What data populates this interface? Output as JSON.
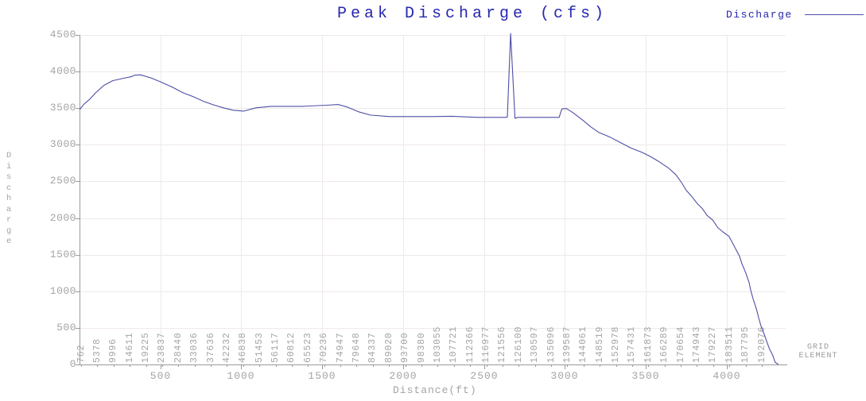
{
  "title": "Peak Discharge (cfs)",
  "legend": {
    "label": "Discharge"
  },
  "y_axis": {
    "label": "Discharge",
    "ticks": [
      "4500",
      "4000",
      "3500",
      "3000",
      "2500",
      "2000",
      "1500",
      "1000",
      "500",
      "0"
    ]
  },
  "x_axis": {
    "label": "Distance(ft)",
    "ticks": [
      "500",
      "1000",
      "1500",
      "2000",
      "2500",
      "3000",
      "3500",
      "4000"
    ]
  },
  "grid_elements": {
    "caption": "GRID ELEMENT",
    "labels": [
      "762",
      "5378",
      "9996",
      "14611",
      "19225",
      "23837",
      "28440",
      "33036",
      "37636",
      "42232",
      "46838",
      "51453",
      "56117",
      "60812",
      "65523",
      "70236",
      "74947",
      "79648",
      "84337",
      "89020",
      "93700",
      "98380",
      "103055",
      "107721",
      "112366",
      "116977",
      "121556",
      "126100",
      "130597",
      "135096",
      "139587",
      "144061",
      "148519",
      "152978",
      "157431",
      "161873",
      "166289",
      "170654",
      "174943",
      "179227",
      "183511",
      "187795",
      "192076"
    ]
  },
  "colors": {
    "background": "#ffffff",
    "title_text": "#2626b0",
    "series_line": "#4d4da6",
    "axis": "#9a9a9a",
    "tick_text": "#a4a4a4",
    "gridline": "#f0e9e9"
  },
  "chart_data": {
    "type": "line",
    "title": "Peak Discharge (cfs)",
    "xlabel": "Distance(ft)",
    "ylabel": "Discharge",
    "xlim": [
      0,
      4400
    ],
    "ylim": [
      0,
      4500
    ],
    "x_tick_interval": 500,
    "y_tick_interval": 500,
    "grid": true,
    "legend_position": "top-right",
    "series": [
      {
        "name": "Discharge",
        "color": "#4d4da6",
        "points": [
          [
            0,
            3480
          ],
          [
            30,
            3560
          ],
          [
            60,
            3615
          ],
          [
            100,
            3710
          ],
          [
            150,
            3810
          ],
          [
            205,
            3875
          ],
          [
            265,
            3905
          ],
          [
            320,
            3930
          ],
          [
            340,
            3950
          ],
          [
            378,
            3955
          ],
          [
            440,
            3915
          ],
          [
            500,
            3860
          ],
          [
            575,
            3785
          ],
          [
            640,
            3710
          ],
          [
            705,
            3655
          ],
          [
            770,
            3590
          ],
          [
            835,
            3540
          ],
          [
            890,
            3505
          ],
          [
            950,
            3472
          ],
          [
            1015,
            3460
          ],
          [
            1090,
            3505
          ],
          [
            1185,
            3525
          ],
          [
            1380,
            3525
          ],
          [
            1530,
            3540
          ],
          [
            1600,
            3550
          ],
          [
            1655,
            3515
          ],
          [
            1725,
            3450
          ],
          [
            1800,
            3405
          ],
          [
            1920,
            3385
          ],
          [
            2170,
            3385
          ],
          [
            2300,
            3390
          ],
          [
            2460,
            3375
          ],
          [
            2630,
            3375
          ],
          [
            2645,
            3380
          ],
          [
            2665,
            4520
          ],
          [
            2692,
            3360
          ],
          [
            2710,
            3375
          ],
          [
            2965,
            3375
          ],
          [
            2982,
            3490
          ],
          [
            3010,
            3495
          ],
          [
            3050,
            3440
          ],
          [
            3115,
            3330
          ],
          [
            3160,
            3245
          ],
          [
            3210,
            3170
          ],
          [
            3280,
            3105
          ],
          [
            3345,
            3030
          ],
          [
            3410,
            2955
          ],
          [
            3475,
            2900
          ],
          [
            3525,
            2845
          ],
          [
            3575,
            2780
          ],
          [
            3640,
            2685
          ],
          [
            3685,
            2595
          ],
          [
            3720,
            2490
          ],
          [
            3750,
            2380
          ],
          [
            3785,
            2295
          ],
          [
            3820,
            2195
          ],
          [
            3850,
            2130
          ],
          [
            3880,
            2035
          ],
          [
            3915,
            1970
          ],
          [
            3945,
            1870
          ],
          [
            3980,
            1805
          ],
          [
            4015,
            1750
          ],
          [
            4045,
            1625
          ],
          [
            4080,
            1480
          ],
          [
            4095,
            1375
          ],
          [
            4120,
            1245
          ],
          [
            4140,
            1115
          ],
          [
            4150,
            1005
          ],
          [
            4165,
            890
          ],
          [
            4185,
            755
          ],
          [
            4200,
            625
          ],
          [
            4215,
            510
          ],
          [
            4235,
            400
          ],
          [
            4250,
            305
          ],
          [
            4265,
            215
          ],
          [
            4285,
            130
          ],
          [
            4300,
            30
          ],
          [
            4320,
            0
          ]
        ]
      }
    ],
    "grid_element_axis_labels": [
      "762",
      "5378",
      "9996",
      "14611",
      "19225",
      "23837",
      "28440",
      "33036",
      "37636",
      "42232",
      "46838",
      "51453",
      "56117",
      "60812",
      "65523",
      "70236",
      "74947",
      "79648",
      "84337",
      "89020",
      "93700",
      "98380",
      "103055",
      "107721",
      "112366",
      "116977",
      "121556",
      "126100",
      "130597",
      "135096",
      "139587",
      "144061",
      "148519",
      "152978",
      "157431",
      "161873",
      "166289",
      "170654",
      "174943",
      "179227",
      "183511",
      "187795",
      "192076"
    ]
  }
}
